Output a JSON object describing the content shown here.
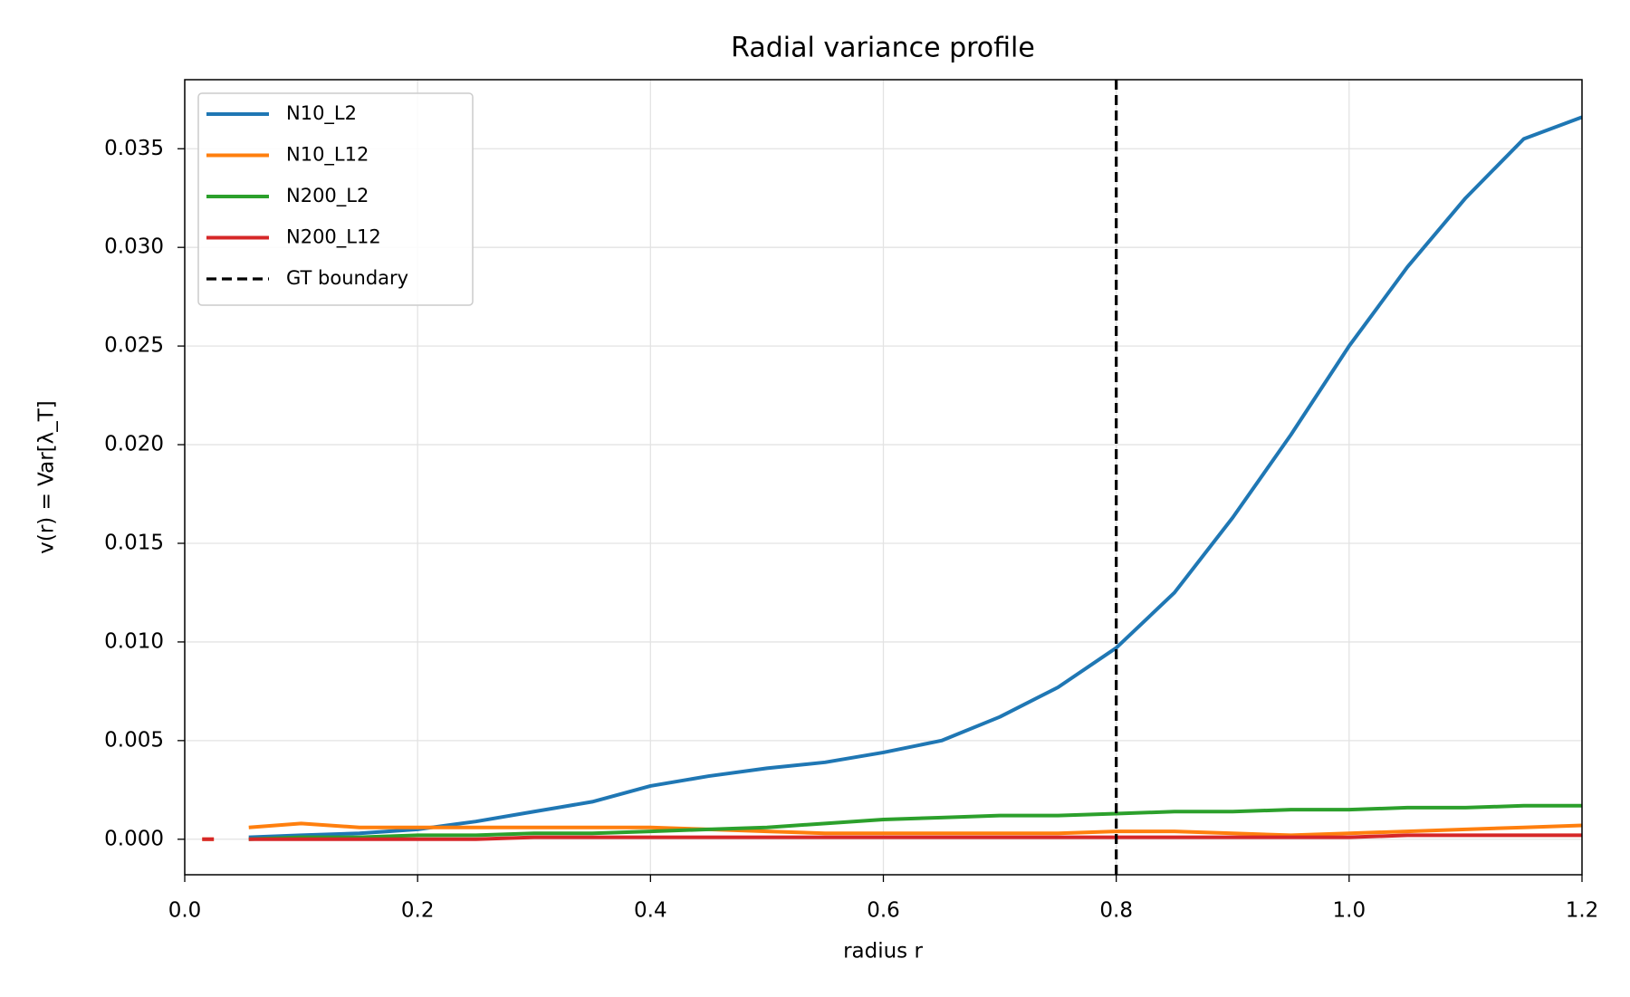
{
  "chart_data": {
    "type": "line",
    "title": "Radial variance profile",
    "xlabel": "radius r",
    "ylabel": "v(r) = Var[λ_T]",
    "x": [
      0.015,
      0.025,
      0.04,
      0.055,
      0.1,
      0.15,
      0.2,
      0.25,
      0.3,
      0.35,
      0.4,
      0.45,
      0.5,
      0.55,
      0.6,
      0.65,
      0.7,
      0.75,
      0.8,
      0.85,
      0.9,
      0.95,
      1.0,
      1.05,
      1.1,
      1.15,
      1.2
    ],
    "series": [
      {
        "name": "N10_L2",
        "color": "#1f77b4",
        "values": [
          null,
          null,
          null,
          0.0001,
          0.0002,
          0.0003,
          0.0005,
          0.0009,
          0.0014,
          0.0019,
          0.0027,
          0.0032,
          0.0036,
          0.0039,
          0.0044,
          0.005,
          0.0062,
          0.0077,
          0.0097,
          0.0125,
          0.0163,
          0.0205,
          0.025,
          0.029,
          0.0325,
          0.0355,
          0.0366
        ]
      },
      {
        "name": "N10_L12",
        "color": "#ff7f0e",
        "values": [
          0,
          0,
          null,
          0.0006,
          0.0008,
          0.0006,
          0.0006,
          0.0006,
          0.0006,
          0.0006,
          0.0006,
          0.0005,
          0.0004,
          0.0003,
          0.0003,
          0.0003,
          0.0003,
          0.0003,
          0.0004,
          0.0004,
          0.0003,
          0.0002,
          0.0003,
          0.0004,
          0.0005,
          0.0006,
          0.0007
        ]
      },
      {
        "name": "N200_L2",
        "color": "#2ca02c",
        "values": [
          null,
          null,
          null,
          0,
          0.0001,
          0.0001,
          0.0002,
          0.0002,
          0.0003,
          0.0003,
          0.0004,
          0.0005,
          0.0006,
          0.0008,
          0.001,
          0.0011,
          0.0012,
          0.0012,
          0.0013,
          0.0014,
          0.0014,
          0.0015,
          0.0015,
          0.0016,
          0.0016,
          0.0017,
          0.0017
        ]
      },
      {
        "name": "N200_L12",
        "color": "#d62728",
        "values": [
          0,
          0,
          null,
          0,
          0,
          0,
          0,
          0,
          0.0001,
          0.0001,
          0.0001,
          0.0001,
          0.0001,
          0.0001,
          0.0001,
          0.0001,
          0.0001,
          0.0001,
          0.0001,
          0.0001,
          0.0001,
          0.0001,
          0.0001,
          0.0002,
          0.0002,
          0.0002,
          0.0002
        ]
      }
    ],
    "vline": {
      "x": 0.8,
      "label": "GT boundary",
      "color": "#000000"
    },
    "xlim": [
      0,
      1.2
    ],
    "xticks": [
      {
        "value": 0,
        "label": "0.0"
      },
      0.2,
      0.4,
      0.6,
      0.8,
      {
        "value": 1,
        "label": "1.0"
      },
      1.2
    ],
    "ylim": [
      -0.0018,
      0.0385
    ],
    "yticks": [
      {
        "value": 0,
        "label": "0.000"
      },
      {
        "value": 0.005,
        "label": "0.005"
      },
      {
        "value": 0.01,
        "label": "0.010"
      },
      {
        "value": 0.015,
        "label": "0.015"
      },
      {
        "value": 0.02,
        "label": "0.020"
      },
      {
        "value": 0.025,
        "label": "0.025"
      },
      {
        "value": 0.03,
        "label": "0.030"
      },
      {
        "value": 0.035,
        "label": "0.035"
      }
    ],
    "grid": true,
    "legend": "upper left"
  }
}
